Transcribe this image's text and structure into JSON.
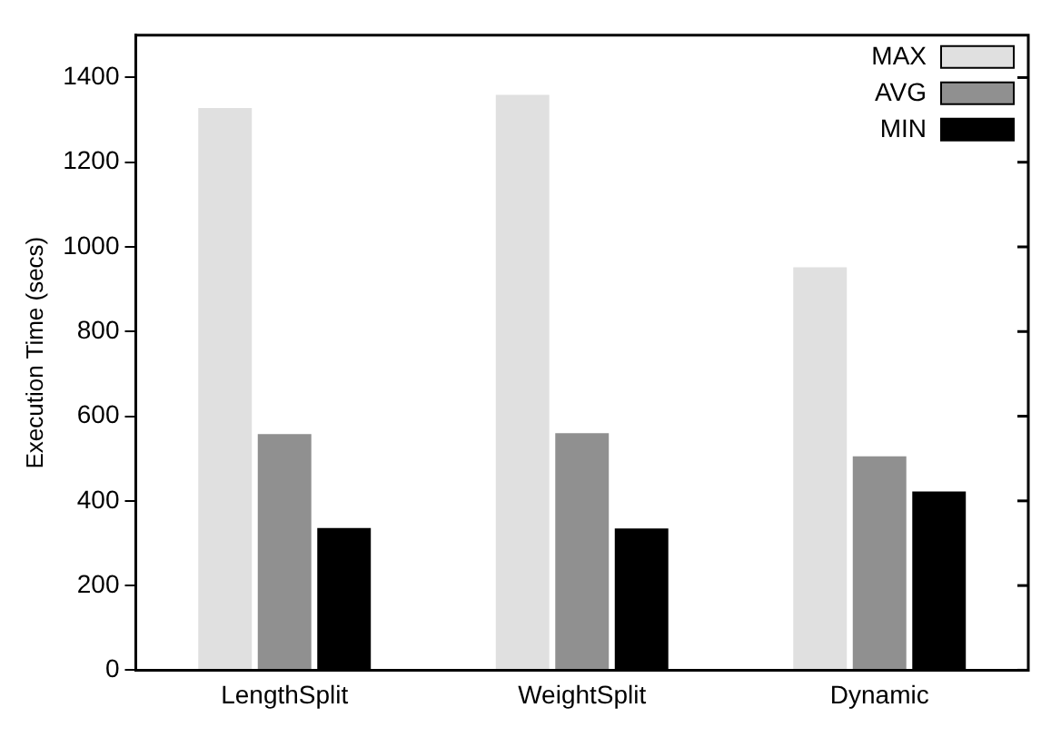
{
  "chart_data": {
    "type": "bar",
    "ylabel": "Execution Time (secs)",
    "categories": [
      "LengthSplit",
      "WeightSplit",
      "Dynamic"
    ],
    "series": [
      {
        "name": "MAX",
        "color": "#e0e0e0",
        "values": [
          1328,
          1359,
          952
        ]
      },
      {
        "name": "AVG",
        "color": "#909090",
        "values": [
          558,
          560,
          505
        ]
      },
      {
        "name": "MIN",
        "color": "#000000",
        "values": [
          336,
          335,
          422
        ]
      }
    ],
    "ylim": [
      0,
      1500
    ],
    "yticks": [
      0,
      200,
      400,
      600,
      800,
      1000,
      1200,
      1400
    ],
    "grid": false,
    "legend": "top right"
  }
}
